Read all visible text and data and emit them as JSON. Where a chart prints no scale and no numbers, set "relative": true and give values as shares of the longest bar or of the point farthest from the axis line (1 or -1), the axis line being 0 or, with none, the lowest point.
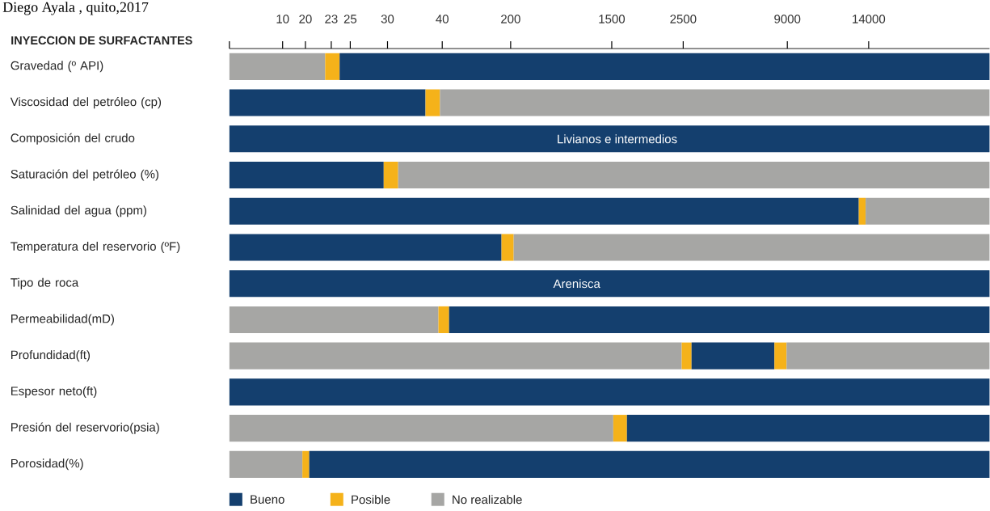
{
  "chart_data": {
    "type": "bar",
    "orientation": "horizontal",
    "stacked": true,
    "relative": true,
    "title": "INYECCION DE SURFACTANTES",
    "annotations": [
      "Diego Ayala , quito,2017",
      {
        "text": "Livianos e intermedios",
        "x": 0.51,
        "y": "Composición del crudo"
      },
      {
        "text": "Arenisca",
        "x": 0.457,
        "y": "Tipo de roca"
      },
      "10",
      "20",
      "23",
      "25",
      "30",
      "40",
      "200",
      "1500",
      "2500",
      "9000",
      "14000"
    ],
    "categories": [
      "Gravedad (º API)",
      "Viscosidad del petróleo (cp)",
      "Composición del crudo",
      "Saturación del petróleo (%)",
      "Salinidad del agua (ppm)",
      "Temperatura del reservorio (ºF)",
      "Tipo de roca",
      "Permeabilidad(mD)",
      "Profundidad(ft)",
      "Espesor neto(ft)",
      "Presión del reservorio(psia)",
      "Porosidad(%)"
    ],
    "series": [
      {
        "name": "No realizable",
        "color": "#a6a6a4",
        "values": [
          0.126,
          null,
          null,
          null,
          null,
          null,
          null,
          0.275,
          0.595,
          null,
          0.505,
          0.096
        ]
      },
      {
        "name": "Posible",
        "color": "#f5b21a",
        "values": [
          0.019,
          null,
          null,
          null,
          null,
          null,
          null,
          0.014,
          0.013,
          null,
          0.018,
          0.009
        ]
      },
      {
        "name": "Bueno",
        "color": "#143f6e",
        "values": [
          0.855,
          0.258,
          1,
          0.203,
          0.828,
          0.358,
          1,
          0.711,
          0.109,
          1,
          0.477,
          0.895
        ]
      },
      {
        "color": "#f5b21a",
        "values": [
          null,
          0.019,
          null,
          0.019,
          0.009,
          0.016,
          null,
          null,
          0.016,
          null,
          null,
          null
        ]
      },
      {
        "color": "#a6a6a4",
        "values": [
          null,
          0.723,
          null,
          0.778,
          0.163,
          0.626,
          null,
          null,
          0.267,
          null,
          null,
          null
        ]
      }
    ],
    "legend": "bottom"
  }
}
